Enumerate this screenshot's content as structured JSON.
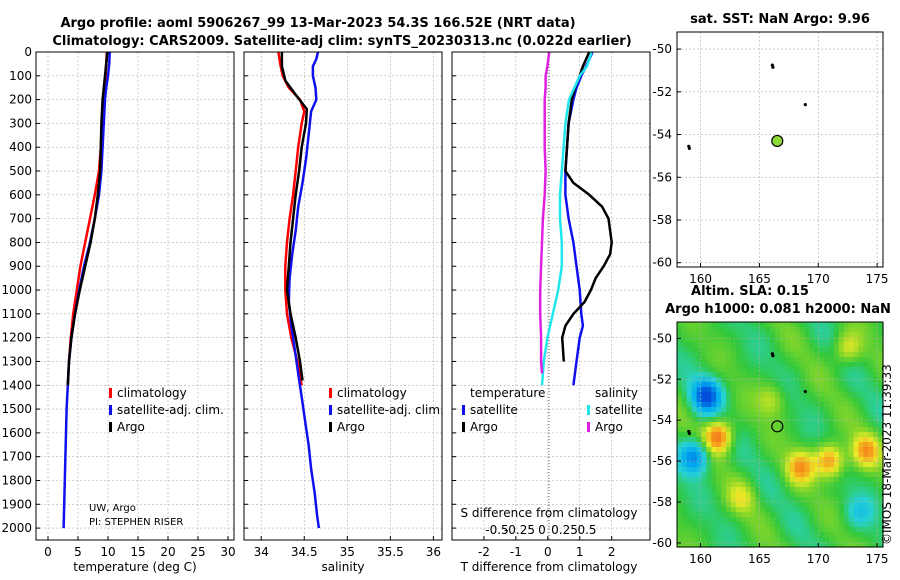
{
  "figure": {
    "title_line1": "Argo profile: aoml 5906267_99 13-Mar-2023 54.3S 166.52E (NRT data)",
    "title_line2": "Climatology: CARS2009. Satellite-adj clim: synTS_20230313.nc (0.022d earlier)",
    "attribution_line1": "UW, Argo",
    "attribution_line2": "PI: STEPHEN RISER",
    "timestamp": "©IMOS 18-Mar-2023 11:39:33"
  },
  "legends": {
    "profiles": [
      "climatology",
      "satellite-adj. clim.",
      "Argo"
    ],
    "diff_header_left": "temperature",
    "diff_header_right": "salinity",
    "diff_entries": [
      "satellite",
      "Argo"
    ]
  },
  "colors": {
    "climatology": "#ff0000",
    "satellite": "#1010ee",
    "argo": "#000000",
    "diff_temp_sat": "#1010ee",
    "diff_temp_argo": "#000000",
    "diff_sal_sat": "#22e6ee",
    "diff_sal_argo": "#e020e0",
    "float_marker": "#8ed83a"
  },
  "chart_data": [
    {
      "type": "line",
      "id": "temperature",
      "xlabel": "temperature (deg C)",
      "ylabel": "",
      "xlim": [
        -2,
        31
      ],
      "ylim": [
        2050,
        0
      ],
      "x_ticks": [
        0,
        5,
        10,
        15,
        20,
        25,
        30
      ],
      "y_ticks": [
        0,
        100,
        200,
        300,
        400,
        500,
        600,
        700,
        800,
        900,
        1000,
        1100,
        1200,
        1300,
        1400,
        1500,
        1600,
        1700,
        1800,
        1900,
        2000
      ],
      "series": [
        {
          "name": "climatology",
          "points": [
            [
              9.8,
              0
            ],
            [
              9.7,
              50
            ],
            [
              9.6,
              100
            ],
            [
              9.4,
              150
            ],
            [
              9.2,
              200
            ],
            [
              9.0,
              300
            ],
            [
              8.8,
              400
            ],
            [
              8.5,
              500
            ],
            [
              7.8,
              600
            ],
            [
              7.0,
              700
            ],
            [
              6.2,
              800
            ],
            [
              5.4,
              900
            ],
            [
              4.8,
              1000
            ],
            [
              4.2,
              1100
            ],
            [
              3.8,
              1200
            ],
            [
              3.5,
              1300
            ],
            [
              3.3,
              1400
            ]
          ]
        },
        {
          "name": "satellite-adj. clim.",
          "points": [
            [
              10.3,
              0
            ],
            [
              10.2,
              50
            ],
            [
              10.0,
              100
            ],
            [
              9.7,
              150
            ],
            [
              9.5,
              200
            ],
            [
              9.3,
              300
            ],
            [
              9.1,
              400
            ],
            [
              8.9,
              500
            ],
            [
              8.5,
              600
            ],
            [
              7.8,
              700
            ],
            [
              7.0,
              800
            ],
            [
              6.0,
              900
            ],
            [
              5.2,
              1000
            ],
            [
              4.5,
              1100
            ],
            [
              3.9,
              1200
            ],
            [
              3.5,
              1300
            ],
            [
              3.3,
              1400
            ],
            [
              3.1,
              1500
            ],
            [
              3.0,
              1600
            ],
            [
              2.9,
              1700
            ],
            [
              2.8,
              1800
            ],
            [
              2.7,
              1900
            ],
            [
              2.6,
              2000
            ]
          ]
        },
        {
          "name": "Argo",
          "points": [
            [
              9.9,
              0
            ],
            [
              9.7,
              50
            ],
            [
              9.5,
              100
            ],
            [
              9.3,
              150
            ],
            [
              9.1,
              200
            ],
            [
              8.9,
              300
            ],
            [
              8.8,
              400
            ],
            [
              8.7,
              500
            ],
            [
              8.3,
              600
            ],
            [
              7.8,
              700
            ],
            [
              7.1,
              800
            ],
            [
              6.2,
              900
            ],
            [
              5.3,
              1000
            ],
            [
              4.5,
              1100
            ],
            [
              3.9,
              1200
            ],
            [
              3.5,
              1300
            ],
            [
              3.3,
              1400
            ]
          ]
        }
      ]
    },
    {
      "type": "line",
      "id": "salinity",
      "xlabel": "salinity",
      "ylabel": "",
      "xlim": [
        33.8,
        36.1
      ],
      "ylim": [
        2050,
        0
      ],
      "x_ticks": [
        34,
        34.5,
        35,
        35.5,
        36
      ],
      "x_tick_labels": [
        "34",
        "34.5",
        "35",
        "35.5",
        "36"
      ],
      "y_ticks": [
        0,
        100,
        200,
        300,
        400,
        500,
        600,
        700,
        800,
        900,
        1000,
        1100,
        1200,
        1300,
        1400,
        1500,
        1600,
        1700,
        1800,
        1900,
        2000
      ],
      "series": [
        {
          "name": "climatology",
          "points": [
            [
              34.2,
              0
            ],
            [
              34.22,
              50
            ],
            [
              34.25,
              100
            ],
            [
              34.32,
              150
            ],
            [
              34.45,
              200
            ],
            [
              34.5,
              250
            ],
            [
              34.47,
              300
            ],
            [
              34.43,
              400
            ],
            [
              34.4,
              500
            ],
            [
              34.37,
              600
            ],
            [
              34.33,
              700
            ],
            [
              34.3,
              800
            ],
            [
              34.28,
              900
            ],
            [
              34.28,
              1000
            ],
            [
              34.3,
              1100
            ],
            [
              34.35,
              1200
            ],
            [
              34.42,
              1300
            ],
            [
              34.47,
              1400
            ]
          ]
        },
        {
          "name": "satellite-adj. clim.",
          "points": [
            [
              34.66,
              0
            ],
            [
              34.64,
              30
            ],
            [
              34.6,
              60
            ],
            [
              34.6,
              100
            ],
            [
              34.63,
              150
            ],
            [
              34.64,
              200
            ],
            [
              34.58,
              250
            ],
            [
              34.55,
              350
            ],
            [
              34.52,
              450
            ],
            [
              34.48,
              550
            ],
            [
              34.43,
              650
            ],
            [
              34.4,
              750
            ],
            [
              34.36,
              850
            ],
            [
              34.33,
              950
            ],
            [
              34.32,
              1050
            ],
            [
              34.35,
              1150
            ],
            [
              34.39,
              1250
            ],
            [
              34.43,
              1350
            ],
            [
              34.47,
              1450
            ],
            [
              34.51,
              1550
            ],
            [
              34.55,
              1650
            ],
            [
              34.58,
              1750
            ],
            [
              34.62,
              1850
            ],
            [
              34.65,
              1950
            ],
            [
              34.67,
              2000
            ]
          ]
        },
        {
          "name": "Argo",
          "points": [
            [
              34.24,
              0
            ],
            [
              34.24,
              60
            ],
            [
              34.28,
              120
            ],
            [
              34.4,
              180
            ],
            [
              34.53,
              240
            ],
            [
              34.52,
              300
            ],
            [
              34.47,
              400
            ],
            [
              34.44,
              500
            ],
            [
              34.4,
              600
            ],
            [
              34.37,
              700
            ],
            [
              34.34,
              800
            ],
            [
              34.32,
              900
            ],
            [
              34.3,
              1000
            ],
            [
              34.34,
              1100
            ],
            [
              34.4,
              1200
            ],
            [
              34.45,
              1300
            ],
            [
              34.48,
              1380
            ]
          ]
        }
      ]
    },
    {
      "type": "line",
      "id": "difference",
      "xlabel": "T difference from climatology",
      "xlabel_top": "S difference from climatology",
      "xlim": [
        -3,
        3.2
      ],
      "xlim_s": [
        -1.0,
        1.2
      ],
      "ylim": [
        2050,
        0
      ],
      "x_ticks": [
        -2,
        -1,
        0,
        1,
        2
      ],
      "x_ticks_s": [
        "-0.5",
        "-0.25",
        "0",
        "0.25",
        "0.5"
      ],
      "zero_line": 0,
      "series": [
        {
          "name": "temperature satellite",
          "axis": "T",
          "points": [
            [
              1.4,
              0
            ],
            [
              1.2,
              60
            ],
            [
              1.05,
              100
            ],
            [
              0.9,
              150
            ],
            [
              0.8,
              200
            ],
            [
              0.65,
              300
            ],
            [
              0.6,
              400
            ],
            [
              0.55,
              500
            ],
            [
              0.55,
              600
            ],
            [
              0.65,
              700
            ],
            [
              0.8,
              800
            ],
            [
              0.9,
              900
            ],
            [
              1.0,
              1000
            ],
            [
              1.05,
              1100
            ],
            [
              1.1,
              1150
            ],
            [
              1.0,
              1200
            ],
            [
              0.9,
              1300
            ],
            [
              0.8,
              1400
            ]
          ]
        },
        {
          "name": "temperature Argo",
          "axis": "T",
          "points": [
            [
              1.3,
              0
            ],
            [
              1.1,
              60
            ],
            [
              1.0,
              100
            ],
            [
              0.85,
              150
            ],
            [
              0.75,
              200
            ],
            [
              0.65,
              300
            ],
            [
              0.6,
              400
            ],
            [
              0.55,
              500
            ],
            [
              0.8,
              550
            ],
            [
              1.3,
              600
            ],
            [
              1.7,
              650
            ],
            [
              1.9,
              700
            ],
            [
              2.0,
              800
            ],
            [
              1.95,
              850
            ],
            [
              1.75,
              900
            ],
            [
              1.5,
              950
            ],
            [
              1.35,
              1000
            ],
            [
              1.15,
              1050
            ],
            [
              0.8,
              1100
            ],
            [
              0.55,
              1150
            ],
            [
              0.45,
              1200
            ],
            [
              0.5,
              1300
            ]
          ]
        },
        {
          "name": "salinity satellite",
          "axis": "S",
          "points": [
            [
              0.55,
              0
            ],
            [
              0.5,
              60
            ],
            [
              0.42,
              100
            ],
            [
              0.36,
              150
            ],
            [
              0.3,
              200
            ],
            [
              0.26,
              300
            ],
            [
              0.24,
              400
            ],
            [
              0.22,
              500
            ],
            [
              0.2,
              600
            ],
            [
              0.2,
              700
            ],
            [
              0.22,
              800
            ],
            [
              0.22,
              900
            ],
            [
              0.18,
              1000
            ],
            [
              0.12,
              1100
            ],
            [
              0.06,
              1200
            ],
            [
              0.02,
              1300
            ],
            [
              0.0,
              1400
            ]
          ]
        },
        {
          "name": "salinity Argo",
          "axis": "S",
          "points": [
            [
              0.08,
              0
            ],
            [
              0.06,
              60
            ],
            [
              0.04,
              100
            ],
            [
              0.04,
              150
            ],
            [
              0.03,
              200
            ],
            [
              0.03,
              300
            ],
            [
              0.03,
              400
            ],
            [
              0.04,
              500
            ],
            [
              0.03,
              600
            ],
            [
              0.01,
              700
            ],
            [
              0.0,
              800
            ],
            [
              -0.01,
              900
            ],
            [
              -0.02,
              1000
            ],
            [
              -0.02,
              1100
            ],
            [
              -0.01,
              1200
            ],
            [
              -0.01,
              1300
            ],
            [
              0.0,
              1350
            ]
          ]
        }
      ]
    },
    {
      "type": "scatter",
      "id": "sst_map",
      "title": "sat. SST: NaN Argo: 9.96",
      "xlim": [
        158,
        175.5
      ],
      "ylim": [
        -60.2,
        -49.2
      ],
      "x_ticks": [
        160,
        165,
        170,
        175
      ],
      "y_ticks": [
        -50,
        -52,
        -54,
        -56,
        -58,
        -60
      ],
      "float_position": [
        166.52,
        -54.3
      ],
      "other_floats": [
        [
          166.1,
          -50.75
        ],
        [
          166.15,
          -50.85
        ],
        [
          168.9,
          -52.6
        ],
        [
          159.0,
          -54.55
        ],
        [
          159.05,
          -54.65
        ]
      ]
    },
    {
      "type": "heatmap",
      "id": "sla_map",
      "title_line1": "Altim. SLA: 0.15",
      "title_line2": "Argo h1000: 0.081 h2000: NaN",
      "xlim": [
        158,
        175.5
      ],
      "ylim": [
        -60.2,
        -49.2
      ],
      "x_ticks": [
        160,
        165,
        170,
        175
      ],
      "y_ticks": [
        -50,
        -52,
        -54,
        -56,
        -58,
        -60
      ],
      "float_position": [
        166.52,
        -54.3
      ],
      "other_floats": [
        [
          166.1,
          -50.75
        ],
        [
          166.15,
          -50.85
        ],
        [
          168.9,
          -52.6
        ],
        [
          159.0,
          -54.55
        ],
        [
          159.05,
          -54.65
        ]
      ],
      "hotspots": [
        {
          "lon": 160.5,
          "lat": -52.8,
          "amp": -1.0
        },
        {
          "lon": 159.5,
          "lat": -55.8,
          "amp": -0.8
        },
        {
          "lon": 161.5,
          "lat": -54.8,
          "amp": 0.8
        },
        {
          "lon": 172.5,
          "lat": -50.5,
          "amp": 0.4
        },
        {
          "lon": 171.0,
          "lat": -56.0,
          "amp": 0.7
        },
        {
          "lon": 168.5,
          "lat": -56.3,
          "amp": 0.6
        },
        {
          "lon": 174.0,
          "lat": -55.5,
          "amp": 0.6
        },
        {
          "lon": 166.0,
          "lat": -53.0,
          "amp": 0.3
        },
        {
          "lon": 163.5,
          "lat": -57.8,
          "amp": 0.3
        },
        {
          "lon": 173.5,
          "lat": -58.5,
          "amp": -0.3
        }
      ]
    }
  ]
}
